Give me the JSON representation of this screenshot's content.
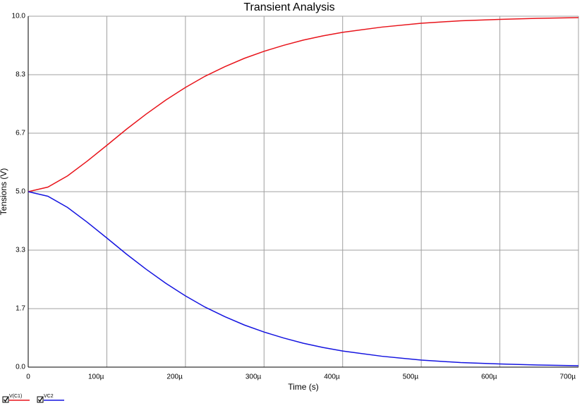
{
  "chart_data": {
    "type": "line",
    "title": "Transient Analysis",
    "xlabel": "Time (s)",
    "ylabel": "Tensions (V)",
    "x": [
      0,
      2.5e-05,
      5e-05,
      7.5e-05,
      0.0001,
      0.000125,
      0.00015,
      0.000175,
      0.0002,
      0.000225,
      0.00025,
      0.000275,
      0.0003,
      0.000325,
      0.00035,
      0.000375,
      0.0004,
      0.00045,
      0.0005,
      0.00055,
      0.0006,
      0.00065,
      0.0007
    ],
    "series": [
      {
        "name": "V(C1)",
        "color": "#e8141b",
        "values": [
          5.0,
          5.13,
          5.45,
          5.87,
          6.32,
          6.78,
          7.21,
          7.61,
          7.97,
          8.29,
          8.56,
          8.8,
          9.0,
          9.17,
          9.32,
          9.44,
          9.54,
          9.69,
          9.8,
          9.87,
          9.91,
          9.94,
          9.96
        ]
      },
      {
        "name": "VC2",
        "color": "#1414e0",
        "values": [
          5.0,
          4.87,
          4.55,
          4.13,
          3.68,
          3.22,
          2.79,
          2.39,
          2.03,
          1.71,
          1.44,
          1.2,
          1.0,
          0.83,
          0.68,
          0.56,
          0.46,
          0.31,
          0.2,
          0.13,
          0.09,
          0.06,
          0.04
        ]
      }
    ],
    "xlim": [
      0,
      0.0007
    ],
    "xticks": [
      0,
      {
        "value": 0.0001,
        "label": "100µ"
      },
      {
        "value": 0.0002,
        "label": "200µ"
      },
      {
        "value": 0.0003,
        "label": "300µ"
      },
      {
        "value": 0.0004,
        "label": "400µ"
      },
      {
        "value": 0.0005,
        "label": "500µ"
      },
      {
        "value": 0.0006,
        "label": "600µ"
      },
      {
        "value": 0.0007,
        "label": "700µ"
      }
    ],
    "ylim": [
      0,
      10
    ],
    "yticks": [
      {
        "value": 0,
        "label": "0.0"
      },
      {
        "value": 1.667,
        "label": "1.7"
      },
      {
        "value": 3.333,
        "label": "3.3"
      },
      {
        "value": 5,
        "label": "5.0"
      },
      {
        "value": 6.667,
        "label": "6.7"
      },
      {
        "value": 8.333,
        "label": "8.3"
      },
      {
        "value": 10,
        "label": "10.0"
      }
    ],
    "grid": true
  }
}
